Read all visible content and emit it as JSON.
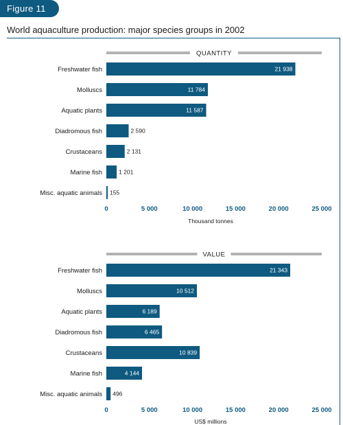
{
  "figure_label": "Figure 11",
  "title": "World aquaculture production: major species groups in 2002",
  "colors": {
    "bar": "#0e5a80",
    "header_bar": "#b3b3b3",
    "badge": "#0e5a80"
  },
  "chart_data": [
    {
      "type": "bar",
      "orientation": "horizontal",
      "header": "QUANTITY",
      "xlabel": "Thousand tonnes",
      "xlim": [
        0,
        25000
      ],
      "ticks": [
        0,
        5000,
        10000,
        15000,
        20000,
        25000
      ],
      "tick_labels": [
        "0",
        "5 000",
        "10 000",
        "15 000",
        "20 000",
        "25 000"
      ],
      "categories": [
        "Freshwater fish",
        "Molluscs",
        "Aquatic plants",
        "Diadromous fish",
        "Crustaceans",
        "Marine fish",
        "Misc. aquatic animals"
      ],
      "values": [
        21938,
        11784,
        11587,
        2590,
        2131,
        1201,
        155
      ],
      "value_labels": [
        "21 938",
        "11 784",
        "11 587",
        "2 590",
        "2 131",
        "1 201",
        "155"
      ]
    },
    {
      "type": "bar",
      "orientation": "horizontal",
      "header": "VALUE",
      "xlabel": "US$ millions",
      "xlim": [
        0,
        25000
      ],
      "ticks": [
        0,
        5000,
        10000,
        15000,
        20000,
        25000
      ],
      "tick_labels": [
        "0",
        "5 000",
        "10 000",
        "15 000",
        "20 000",
        "25 000"
      ],
      "categories": [
        "Freshwater fish",
        "Molluscs",
        "Aquatic plants",
        "Diadromous fish",
        "Crustaceans",
        "Marine fish",
        "Misc. aquatic animals"
      ],
      "values": [
        21343,
        10512,
        6189,
        6465,
        10839,
        4144,
        496
      ],
      "value_labels": [
        "21 343",
        "10 512",
        "6 189",
        "6 465",
        "10 839",
        "4 144",
        "496"
      ]
    }
  ]
}
